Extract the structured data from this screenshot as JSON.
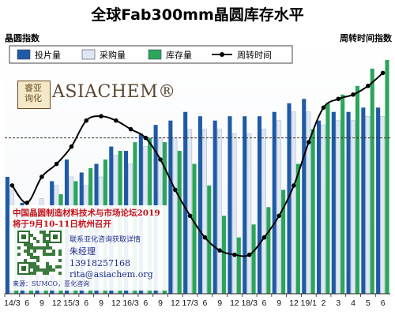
{
  "chart_data": {
    "type": "bar",
    "title": "全球Fab300mm晶圆库存水平",
    "left_axis_label": "晶圆指数",
    "right_axis_label": "周转时间指数",
    "categories": [
      "14/3",
      "6",
      "9",
      "12",
      "15/3",
      "6",
      "9",
      "12",
      "16/3",
      "6",
      "9",
      "12",
      "17/3",
      "6",
      "9",
      "12",
      "18/3",
      "6",
      "9",
      "12",
      "19/1",
      "2",
      "3",
      "4",
      "5",
      "6"
    ],
    "series": [
      {
        "name": "投片量",
        "kind": "bar",
        "color": "#1f5aa6",
        "values": [
          67,
          61,
          60,
          66,
          71,
          68,
          70,
          74,
          73,
          77,
          79,
          80,
          82,
          81,
          80,
          81,
          81,
          81,
          82,
          84,
          85,
          80,
          82,
          82,
          83,
          83
        ]
      },
      {
        "name": "采购量",
        "kind": "bar",
        "color": "#dfe8f2",
        "values": [
          64,
          58,
          62,
          65,
          67,
          65,
          67,
          72,
          70,
          74,
          76,
          76,
          78,
          78,
          78,
          77,
          77,
          78,
          80,
          82,
          82,
          79,
          80,
          80,
          81,
          81
        ]
      },
      {
        "name": "库存量",
        "kind": "bar",
        "color": "#2aa55a",
        "values": [
          60,
          55,
          57,
          63,
          66,
          69,
          71,
          73,
          75,
          76,
          75,
          73,
          70,
          65,
          58,
          53,
          56,
          60,
          64,
          70,
          78,
          84,
          86,
          88,
          92,
          94
        ]
      },
      {
        "name": "周转时间",
        "kind": "line",
        "color": "#000000",
        "values": [
          65,
          61,
          67,
          70,
          74,
          80,
          81,
          80,
          78,
          76,
          71,
          64,
          58,
          53,
          50,
          49,
          49,
          53,
          58,
          65,
          75,
          83,
          85,
          86,
          88,
          91
        ]
      }
    ],
    "reference_line": 76,
    "ylim": [
      40,
      98
    ],
    "grid": false,
    "legend_position": "top"
  },
  "branding": {
    "logo_seal_text": "睿亚 询化",
    "logo_text": "ASIACHEM®"
  },
  "promo": {
    "line1": "中国晶圆制造材料技术与市场论坛2019",
    "line2": "将于9月10-11日杭州召开",
    "contact_heading": "联系亚化咨询获取详情",
    "contact_name": "朱经理",
    "contact_phone": "13918257168",
    "contact_email": "rita@asiachem.org",
    "source": "来源：SUMCO，亚化咨询"
  }
}
